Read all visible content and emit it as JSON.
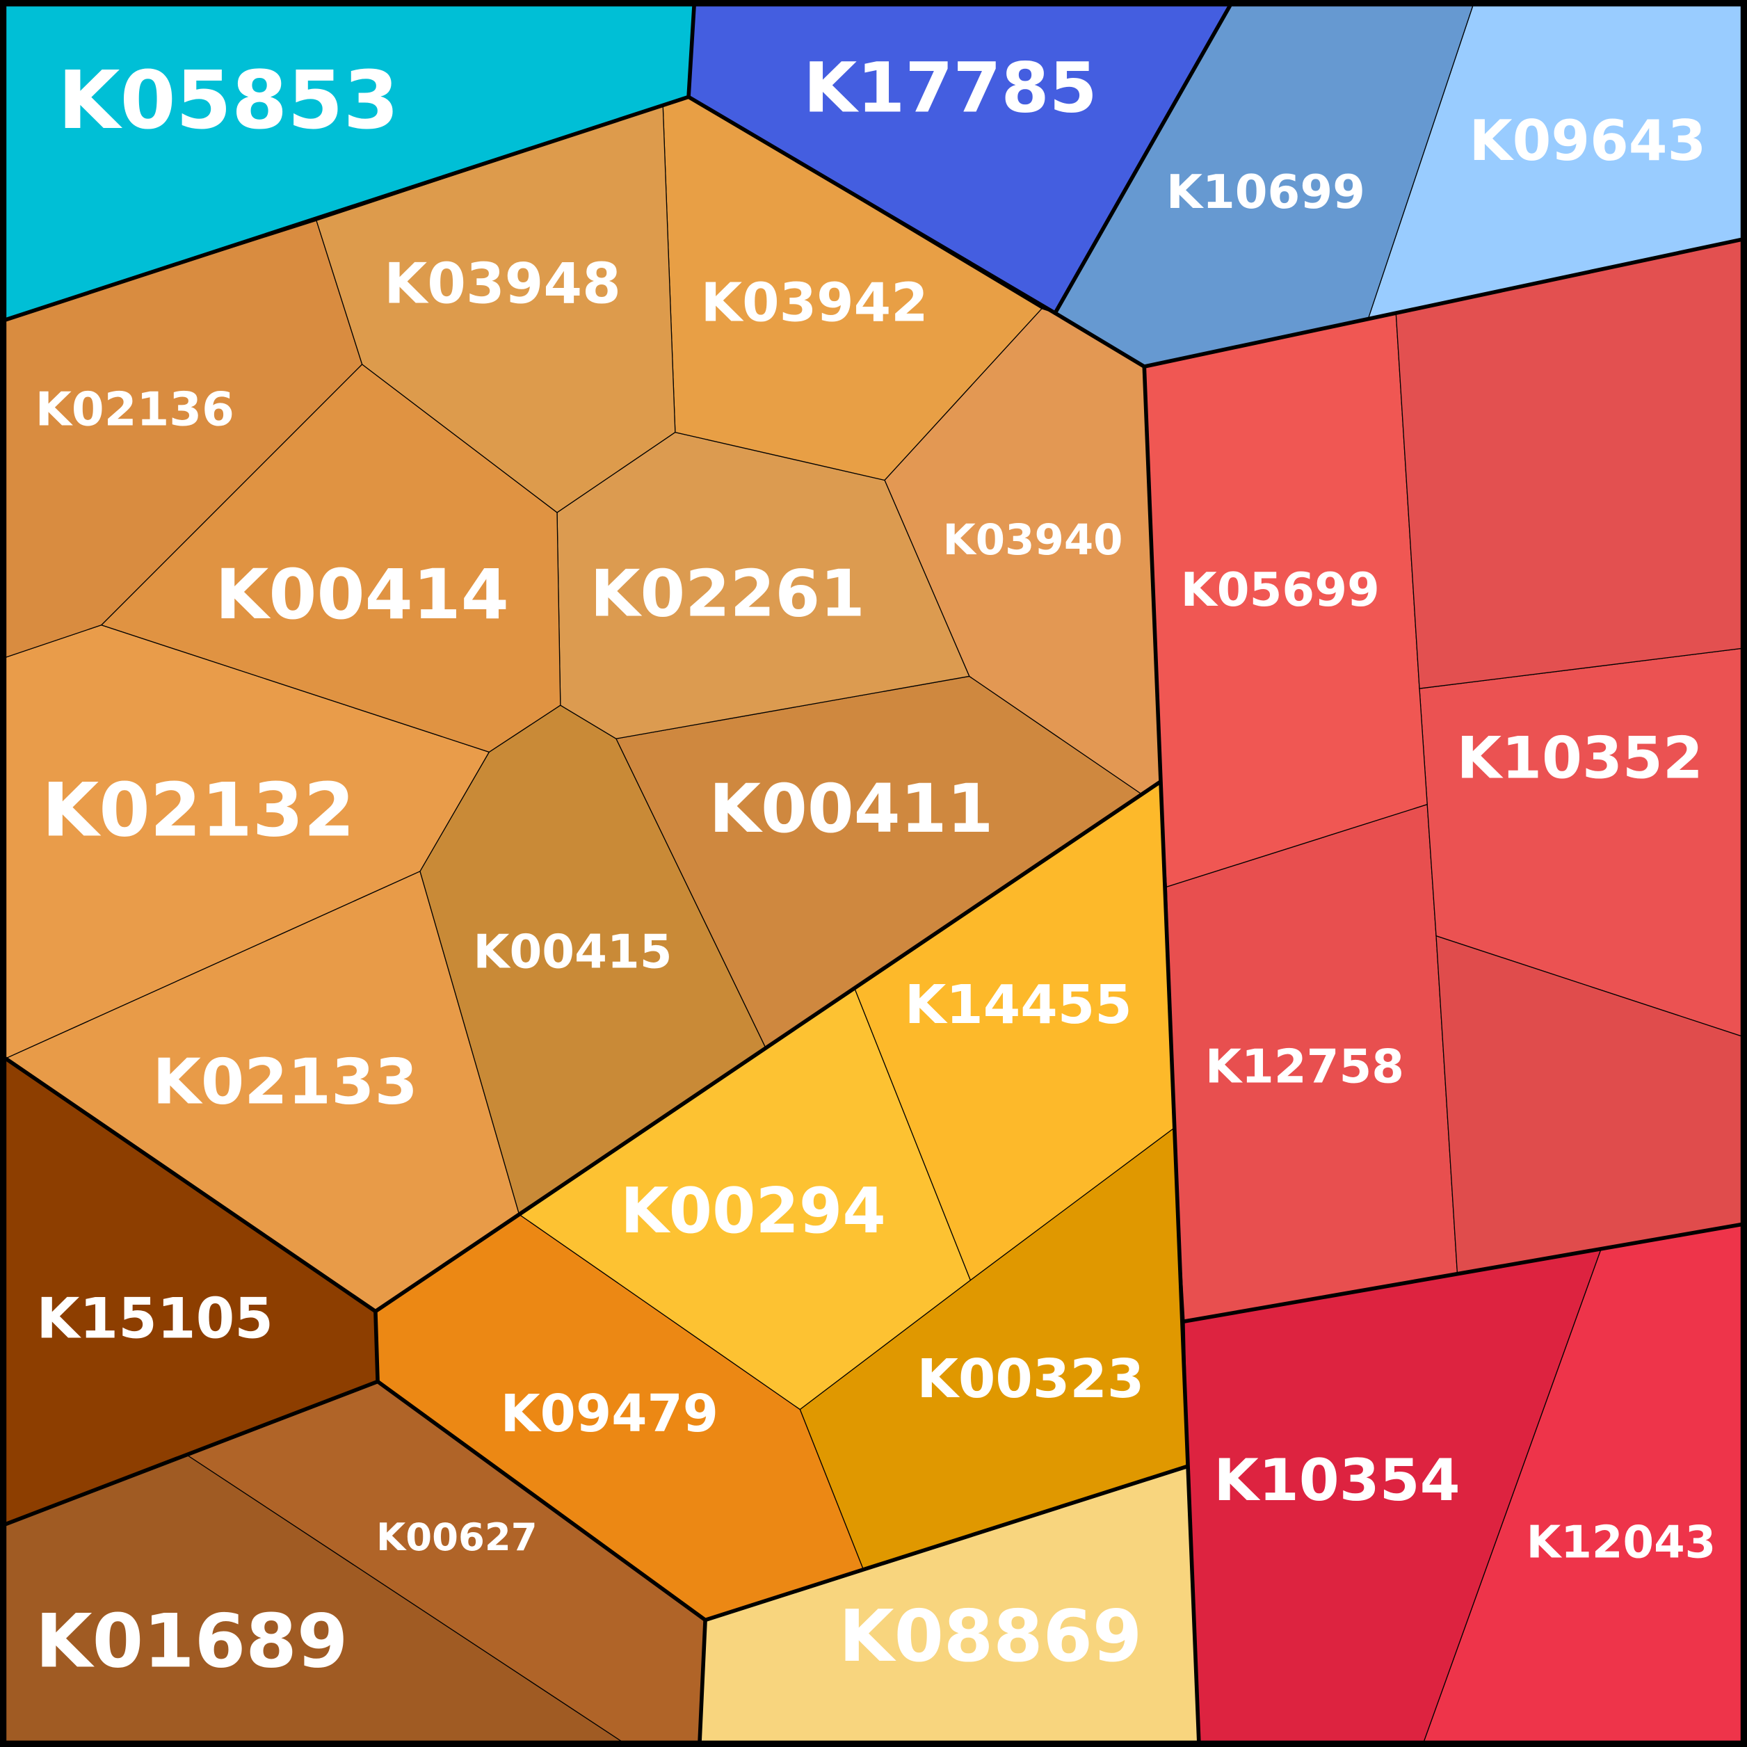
{
  "cells": [
    {
      "label": "K05853"
    },
    {
      "label": "K17785"
    },
    {
      "label": "K10699"
    },
    {
      "label": "K09643"
    },
    {
      "label": "K03948"
    },
    {
      "label": "K03942"
    },
    {
      "label": "K02136"
    },
    {
      "label": "K00414"
    },
    {
      "label": "K02261"
    },
    {
      "label": "K03940"
    },
    {
      "label": "K02132"
    },
    {
      "label": "K00411"
    },
    {
      "label": "K00415"
    },
    {
      "label": "K02133"
    },
    {
      "label": "K14455"
    },
    {
      "label": "K00294"
    },
    {
      "label": "K15105"
    },
    {
      "label": "K09479"
    },
    {
      "label": "K00323"
    },
    {
      "label": "K00627"
    },
    {
      "label": "K01689"
    },
    {
      "label": "K08869"
    },
    {
      "label": "K05699"
    },
    {
      "label": "K10352"
    },
    {
      "label": "K12758"
    },
    {
      "label": "K10354"
    },
    {
      "label": "K12043"
    }
  ]
}
